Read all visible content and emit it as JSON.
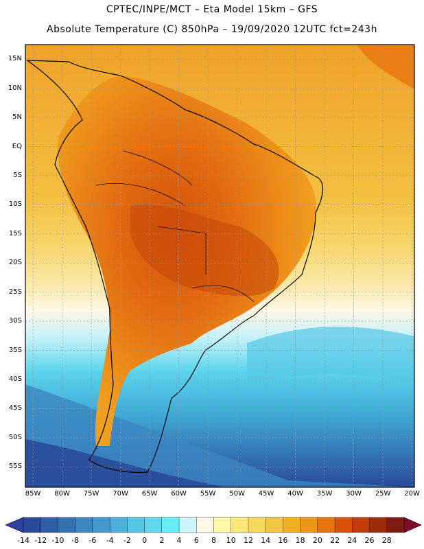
{
  "header": {
    "line1": "CPTEC/INPE/MCT  –   Eta Model 15km  –  GFS",
    "line2": "Absolute Temperature (C) 850hPa  –  19/09/2020 12UTC fct=243h"
  },
  "map": {
    "lat_labels": [
      "15N",
      "10N",
      "5N",
      "EQ",
      "5S",
      "10S",
      "15S",
      "20S",
      "25S",
      "30S",
      "35S",
      "40S",
      "45S",
      "50S",
      "55S"
    ],
    "lon_labels": [
      "85W",
      "80W",
      "75W",
      "70W",
      "65W",
      "60W",
      "55W",
      "50W",
      "45W",
      "40W",
      "35W",
      "30W",
      "25W",
      "20W"
    ],
    "lat_range": [
      15,
      -55
    ],
    "lon_range": [
      -85,
      -20
    ]
  },
  "colorbar": {
    "labels": [
      "-14",
      "-12",
      "-10",
      "-8",
      "-6",
      "-4",
      "-2",
      "0",
      "2",
      "4",
      "6",
      "8",
      "10",
      "12",
      "14",
      "16",
      "18",
      "20",
      "22",
      "24",
      "26",
      "28"
    ],
    "colors": [
      "#2a4a99",
      "#2f5ea8",
      "#3572b3",
      "#3c86c1",
      "#4498cc",
      "#4cb0dc",
      "#56c8e6",
      "#5fd8ee",
      "#68ecf8",
      "#ccf4fc",
      "#fff8e6",
      "#fff7a8",
      "#fae878",
      "#f6d85a",
      "#f2c640",
      "#f0b020",
      "#ee9618",
      "#e87410",
      "#d85208",
      "#c03c08",
      "#9c2c08",
      "#7c1c10"
    ],
    "under_color": "#3040a0",
    "over_color": "#7c0c28"
  }
}
